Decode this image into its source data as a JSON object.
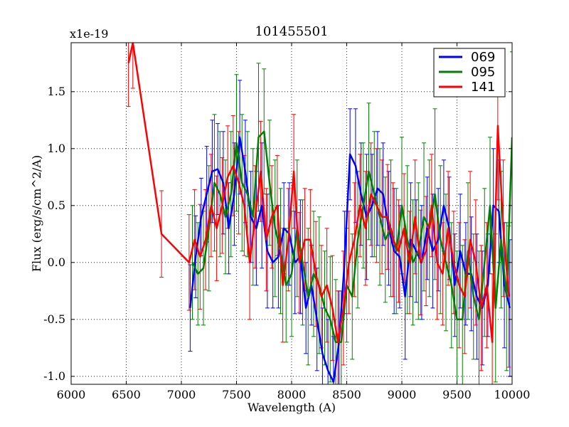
{
  "chart_data": {
    "type": "line",
    "title": "101455501",
    "xlabel": "Wavelength (A)",
    "ylabel": "Flux (erg/s/cm^2/A)",
    "y_multiplier": "x1e-19",
    "xlim": [
      6000,
      10000
    ],
    "ylim": [
      -1.07,
      1.93
    ],
    "x_ticks": [
      6000,
      6500,
      7000,
      7500,
      8000,
      8500,
      9000,
      9500,
      10000
    ],
    "y_ticks": [
      -1.0,
      -0.5,
      0.0,
      0.5,
      1.0,
      1.5
    ],
    "grid": true,
    "legend_position": "top-right",
    "error_bars": true,
    "series": [
      {
        "name": "069",
        "color": "#0000ff",
        "x": [
          7080,
          7130,
          7180,
          7230,
          7280,
          7330,
          7380,
          7430,
          7480,
          7530,
          7580,
          7630,
          7680,
          7730,
          7780,
          7830,
          7880,
          7930,
          7980,
          8030,
          8080,
          8130,
          8180,
          8230,
          8280,
          8330,
          8380,
          8430,
          8480,
          8530,
          8580,
          8630,
          8680,
          8730,
          8780,
          8830,
          8880,
          8930,
          8980,
          9030,
          9080,
          9130,
          9180,
          9230,
          9280,
          9330,
          9380,
          9430,
          9480,
          9530,
          9580,
          9630,
          9680,
          9730,
          9780,
          9830,
          9880,
          9930,
          9980
        ],
        "y": [
          -0.4,
          0.05,
          0.4,
          0.6,
          0.8,
          0.82,
          0.7,
          0.3,
          0.6,
          1.1,
          0.8,
          0.4,
          0.3,
          0.5,
          0.1,
          0.0,
          0.05,
          0.3,
          0.25,
          0.0,
          0.05,
          -0.4,
          -0.2,
          -0.5,
          -0.8,
          -0.95,
          -1.05,
          -0.7,
          0.0,
          0.95,
          0.85,
          0.6,
          0.4,
          0.5,
          0.65,
          0.6,
          0.3,
          0.1,
          0.05,
          -0.3,
          0.2,
          0.1,
          0.0,
          0.3,
          0.1,
          0.2,
          0.5,
          0.3,
          -0.2,
          0.1,
          -0.1,
          -0.1,
          -0.3,
          -0.4,
          -0.2,
          0.5,
          0.45,
          -0.2,
          -0.4
        ],
        "err": [
          0.38,
          0.36,
          0.34,
          0.42,
          0.45,
          0.4,
          0.45,
          0.4,
          0.45,
          0.5,
          0.45,
          0.4,
          0.5,
          0.55,
          0.5,
          0.4,
          0.45,
          0.4,
          0.45,
          0.45,
          0.5,
          0.4,
          0.35,
          0.45,
          0.4,
          0.45,
          0.4,
          0.45,
          0.45,
          0.4,
          0.5,
          0.45,
          0.55,
          0.45,
          0.5,
          0.45,
          0.5,
          0.55,
          0.45,
          0.55,
          0.5,
          0.45,
          0.5,
          0.45,
          0.5,
          0.45,
          0.4,
          0.45,
          0.45,
          0.5,
          0.45,
          0.5,
          0.55,
          0.5,
          0.45,
          0.5,
          0.45,
          0.55,
          0.6
        ]
      },
      {
        "name": "095",
        "color": "#008000",
        "x": [
          7100,
          7150,
          7200,
          7250,
          7300,
          7350,
          7400,
          7450,
          7500,
          7550,
          7600,
          7650,
          7700,
          7750,
          7800,
          7850,
          7900,
          7950,
          8000,
          8050,
          8100,
          8150,
          8200,
          8250,
          8300,
          8350,
          8400,
          8450,
          8500,
          8550,
          8600,
          8650,
          8700,
          8750,
          8800,
          8850,
          8900,
          8950,
          9000,
          9050,
          9100,
          9150,
          9200,
          9250,
          9300,
          9350,
          9400,
          9450,
          9500,
          9550,
          9600,
          9650,
          9700,
          9750,
          9800,
          9850,
          9900,
          9950,
          10000
        ],
        "y": [
          0.0,
          -0.1,
          -0.05,
          0.3,
          0.7,
          0.6,
          0.4,
          0.6,
          1.05,
          0.7,
          0.6,
          0.4,
          1.1,
          1.15,
          0.7,
          0.3,
          0.1,
          -0.2,
          -0.1,
          0.3,
          0.0,
          -0.3,
          -0.1,
          -0.2,
          -0.4,
          -0.5,
          -0.7,
          -0.7,
          -0.2,
          -0.3,
          0.2,
          0.5,
          0.8,
          0.6,
          0.4,
          0.2,
          0.3,
          0.1,
          0.5,
          0.2,
          0.0,
          0.1,
          0.4,
          0.3,
          0.6,
          0.2,
          0.0,
          -0.2,
          -0.5,
          -0.5,
          0.1,
          -0.3,
          -0.5,
          0.0,
          0.5,
          -0.4,
          0.2,
          -0.3,
          1.1
        ],
        "err": [
          0.5,
          0.45,
          0.5,
          0.55,
          0.6,
          0.55,
          0.5,
          0.55,
          0.6,
          0.6,
          0.55,
          0.6,
          0.65,
          0.55,
          0.55,
          0.6,
          0.55,
          0.5,
          0.55,
          0.6,
          0.55,
          0.6,
          0.55,
          0.6,
          0.5,
          0.55,
          0.55,
          0.45,
          0.5,
          0.55,
          0.6,
          0.55,
          0.6,
          0.55,
          0.6,
          0.55,
          0.6,
          0.55,
          0.6,
          0.65,
          0.55,
          0.6,
          0.65,
          0.6,
          0.75,
          0.65,
          0.6,
          0.55,
          0.6,
          0.65,
          0.6,
          0.55,
          0.6,
          0.65,
          0.6,
          0.65,
          0.6,
          0.65,
          0.75
        ]
      },
      {
        "name": "141",
        "color": "#ff0000",
        "x": [
          6520,
          6560,
          6820,
          7070,
          7120,
          7170,
          7220,
          7270,
          7320,
          7370,
          7420,
          7470,
          7520,
          7570,
          7620,
          7670,
          7720,
          7770,
          7820,
          7870,
          7920,
          7970,
          8020,
          8070,
          8120,
          8170,
          8220,
          8270,
          8320,
          8370,
          8420,
          8470,
          8520,
          8570,
          8620,
          8670,
          8720,
          8770,
          8820,
          8870,
          8920,
          8970,
          9020,
          9070,
          9120,
          9170,
          9220,
          9270,
          9320,
          9370,
          9420,
          9470,
          9520,
          9570,
          9620,
          9670,
          9720,
          9770,
          9820,
          9870,
          9920,
          9970
        ],
        "y": [
          1.75,
          1.93,
          0.25,
          0.0,
          0.2,
          0.05,
          0.2,
          0.5,
          0.3,
          0.5,
          0.75,
          0.85,
          0.7,
          0.5,
          0.0,
          0.4,
          0.8,
          0.2,
          0.4,
          0.5,
          -0.2,
          0.2,
          0.8,
          0.0,
          0.2,
          0.2,
          -0.1,
          -0.3,
          -0.2,
          -0.4,
          -0.7,
          -0.4,
          0.0,
          0.2,
          0.5,
          0.3,
          0.6,
          0.5,
          0.4,
          0.4,
          0.2,
          0.1,
          0.3,
          0.0,
          0.4,
          0.0,
          0.1,
          0.5,
          0.0,
          -0.1,
          0.3,
          0.0,
          -0.2,
          -0.3,
          0.2,
          0.0,
          -0.4,
          -0.2,
          -0.7,
          1.2,
          0.3,
          -0.3
        ],
        "err": [
          0.38,
          0.4,
          0.38,
          0.42,
          0.44,
          0.46,
          0.44,
          0.45,
          0.46,
          0.42,
          0.45,
          0.44,
          0.45,
          0.44,
          0.5,
          0.45,
          0.44,
          0.45,
          0.45,
          0.44,
          0.5,
          0.45,
          0.5,
          0.44,
          0.45,
          0.44,
          0.46,
          0.45,
          0.5,
          0.46,
          0.45,
          0.5,
          0.45,
          0.5,
          0.45,
          0.5,
          0.45,
          0.5,
          0.5,
          0.46,
          0.5,
          0.45,
          0.48,
          0.45,
          0.5,
          0.46,
          0.48,
          0.45,
          0.5,
          0.45,
          0.5,
          0.45,
          0.55,
          0.5,
          0.6,
          0.55,
          0.55,
          0.55,
          0.6,
          0.65,
          0.6,
          0.62
        ]
      }
    ]
  }
}
